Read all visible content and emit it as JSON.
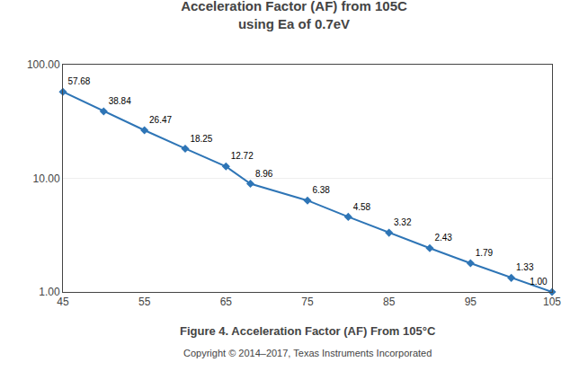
{
  "chart_data": {
    "type": "line",
    "title": "Acceleration Factor (AF) from 105C",
    "subtitle": "using Ea of 0.7eV",
    "x": [
      45,
      50,
      55,
      60,
      65,
      68,
      75,
      80,
      85,
      90,
      95,
      100,
      105
    ],
    "values": [
      57.68,
      38.84,
      26.47,
      18.25,
      12.72,
      8.96,
      6.38,
      4.58,
      3.32,
      2.43,
      1.79,
      1.33,
      1.0
    ],
    "value_labels": [
      "57.68",
      "38.84",
      "26.47",
      "18.25",
      "12.72",
      "8.96",
      "6.38",
      "4.58",
      "3.32",
      "2.43",
      "1.79",
      "1.33",
      "1.00"
    ],
    "data_labels": true,
    "color": "#2E75B6",
    "marker": "diamond",
    "log": "y",
    "grid": "y",
    "xlim": [
      45,
      105
    ],
    "xticks": [
      45,
      55,
      65,
      75,
      85,
      95,
      105
    ],
    "ylim": [
      1.0,
      100.0
    ],
    "yticks": [
      {
        "value": 1.0,
        "label": "1.00"
      },
      {
        "value": 10.0,
        "label": "10.00"
      },
      {
        "value": 100.0,
        "label": "100.00"
      }
    ],
    "annotations": [
      "Figure 4. Acceleration Factor (AF) From 105°C",
      "Copyright © 2014–2017, Texas Instruments Incorporated"
    ]
  }
}
